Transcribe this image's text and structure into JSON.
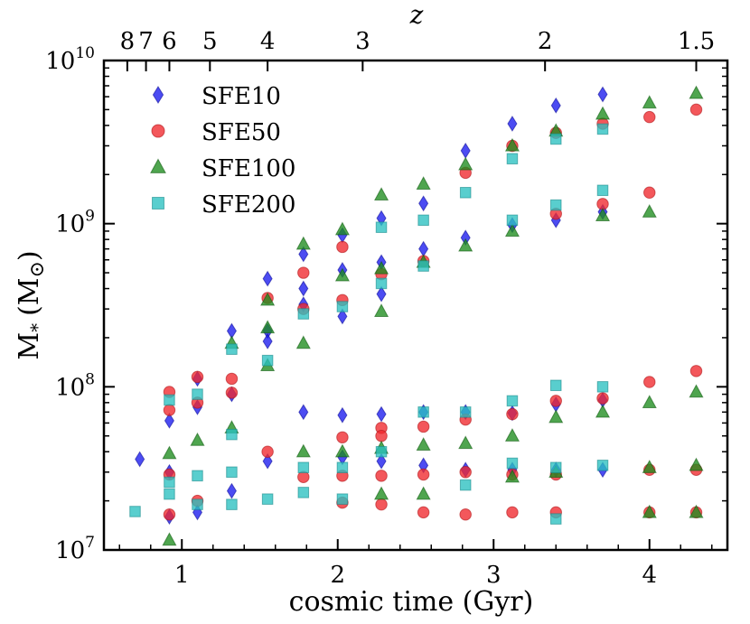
{
  "chart_data": {
    "type": "scatter",
    "title": "",
    "xlabel": "cosmic time (Gyr)",
    "ylabel": "M",
    "ylabel_sub": "*",
    "ylabel_unit": "(M",
    "ylabel_unit_close": ")",
    "top_axis_label": "z",
    "xlim": [
      0.5,
      4.5
    ],
    "ylim": [
      10000000.0,
      10000000000.0
    ],
    "yscale": "log",
    "legend_position": "top-left",
    "x_ticks": [
      {
        "value": 1,
        "label": "1"
      },
      {
        "value": 2,
        "label": "2"
      },
      {
        "value": 3,
        "label": "3"
      },
      {
        "value": 4,
        "label": "4"
      }
    ],
    "y_tick_base": "10",
    "y_ticks": [
      {
        "value": 10000000.0,
        "exp": "7"
      },
      {
        "value": 100000000.0,
        "exp": "8"
      },
      {
        "value": 1000000000.0,
        "exp": "9"
      },
      {
        "value": 10000000000.0,
        "exp": "10"
      }
    ],
    "top_ticks": [
      {
        "t": 0.65,
        "label": "8"
      },
      {
        "t": 0.77,
        "label": "7"
      },
      {
        "t": 0.92,
        "label": "6"
      },
      {
        "t": 1.18,
        "label": "5"
      },
      {
        "t": 1.55,
        "label": "4"
      },
      {
        "t": 2.16,
        "label": "3"
      },
      {
        "t": 3.33,
        "label": "2"
      },
      {
        "t": 4.3,
        "label": "1.5"
      }
    ],
    "series": [
      {
        "name": "SFE10",
        "marker": "diamond",
        "color": "#1a1aee",
        "edge": "#0d0d9a",
        "points": [
          [
            0.73,
            36000000.0
          ],
          [
            0.92,
            62000000.0
          ],
          [
            0.92,
            30000000.0
          ],
          [
            0.92,
            16000000.0
          ],
          [
            1.1,
            112000000.0
          ],
          [
            1.1,
            75000000.0
          ],
          [
            1.1,
            17000000.0
          ],
          [
            1.32,
            220000000.0
          ],
          [
            1.32,
            90000000.0
          ],
          [
            1.32,
            23000000.0
          ],
          [
            1.55,
            460000000.0
          ],
          [
            1.55,
            220000000.0
          ],
          [
            1.55,
            190000000.0
          ],
          [
            1.55,
            35000000.0
          ],
          [
            1.78,
            650000000.0
          ],
          [
            1.78,
            400000000.0
          ],
          [
            1.78,
            320000000.0
          ],
          [
            1.78,
            70000000.0
          ],
          [
            2.03,
            850000000.0
          ],
          [
            2.03,
            520000000.0
          ],
          [
            2.03,
            270000000.0
          ],
          [
            2.03,
            67000000.0
          ],
          [
            2.03,
            37000000.0
          ],
          [
            2.28,
            1080000000.0
          ],
          [
            2.28,
            580000000.0
          ],
          [
            2.28,
            370000000.0
          ],
          [
            2.28,
            68000000.0
          ],
          [
            2.28,
            35000000.0
          ],
          [
            2.55,
            1330000000.0
          ],
          [
            2.55,
            700000000.0
          ],
          [
            2.55,
            70000000.0
          ],
          [
            2.55,
            33000000.0
          ],
          [
            2.82,
            2800000000.0
          ],
          [
            2.82,
            820000000.0
          ],
          [
            2.82,
            70000000.0
          ],
          [
            2.82,
            31000000.0
          ],
          [
            3.12,
            4100000000.0
          ],
          [
            3.12,
            980000000.0
          ],
          [
            3.12,
            69000000.0
          ],
          [
            3.12,
            31000000.0
          ],
          [
            3.4,
            5300000000.0
          ],
          [
            3.4,
            1050000000.0
          ],
          [
            3.4,
            78000000.0
          ],
          [
            3.4,
            31000000.0
          ],
          [
            3.7,
            6200000000.0
          ],
          [
            3.7,
            1180000000.0
          ],
          [
            3.7,
            83000000.0
          ],
          [
            3.7,
            31000000.0
          ]
        ]
      },
      {
        "name": "SFE50",
        "marker": "circle",
        "color": "#f0282d",
        "edge": "#b01418",
        "points": [
          [
            0.92,
            93000000.0
          ],
          [
            0.92,
            72000000.0
          ],
          [
            0.92,
            29000000.0
          ],
          [
            0.92,
            16500000.0
          ],
          [
            1.1,
            115000000.0
          ],
          [
            1.1,
            80000000.0
          ],
          [
            1.1,
            20000000.0
          ],
          [
            1.32,
            112000000.0
          ],
          [
            1.32,
            92000000.0
          ],
          [
            1.55,
            350000000.0
          ],
          [
            1.55,
            40000000.0
          ],
          [
            1.78,
            500000000.0
          ],
          [
            1.78,
            300000000.0
          ],
          [
            1.78,
            28000000.0
          ],
          [
            2.03,
            720000000.0
          ],
          [
            2.03,
            340000000.0
          ],
          [
            2.03,
            49000000.0
          ],
          [
            2.03,
            28500000.0
          ],
          [
            2.03,
            19500000.0
          ],
          [
            2.28,
            490000000.0
          ],
          [
            2.28,
            56000000.0
          ],
          [
            2.28,
            50000000.0
          ],
          [
            2.28,
            28500000.0
          ],
          [
            2.28,
            19000000.0
          ],
          [
            2.55,
            590000000.0
          ],
          [
            2.55,
            57000000.0
          ],
          [
            2.55,
            29000000.0
          ],
          [
            2.55,
            17000000.0
          ],
          [
            2.82,
            2050000000.0
          ],
          [
            2.82,
            63000000.0
          ],
          [
            2.82,
            30000000.0
          ],
          [
            2.82,
            16500000.0
          ],
          [
            3.12,
            3000000000.0
          ],
          [
            3.12,
            68000000.0
          ],
          [
            3.12,
            29000000.0
          ],
          [
            3.12,
            17000000.0
          ],
          [
            3.4,
            3600000000.0
          ],
          [
            3.4,
            1150000000.0
          ],
          [
            3.4,
            82000000.0
          ],
          [
            3.4,
            29000000.0
          ],
          [
            3.4,
            17000000.0
          ],
          [
            3.7,
            4100000000.0
          ],
          [
            3.7,
            1320000000.0
          ],
          [
            3.7,
            85000000.0
          ],
          [
            4.0,
            4500000000.0
          ],
          [
            4.0,
            1550000000.0
          ],
          [
            4.0,
            107000000.0
          ],
          [
            4.0,
            31000000.0
          ],
          [
            4.0,
            17000000.0
          ],
          [
            4.3,
            5000000000.0
          ],
          [
            4.3,
            125000000.0
          ],
          [
            4.3,
            31000000.0
          ],
          [
            4.3,
            17000000.0
          ]
        ]
      },
      {
        "name": "SFE100",
        "marker": "triangle",
        "color": "#1e8c1e",
        "edge": "#0f5c0f",
        "points": [
          [
            0.92,
            39000000.0
          ],
          [
            0.92,
            11500000.0
          ],
          [
            1.1,
            47000000.0
          ],
          [
            1.32,
            185000000.0
          ],
          [
            1.32,
            56000000.0
          ],
          [
            1.55,
            340000000.0
          ],
          [
            1.55,
            230000000.0
          ],
          [
            1.55,
            135000000.0
          ],
          [
            1.78,
            750000000.0
          ],
          [
            1.78,
            185000000.0
          ],
          [
            1.78,
            40000000.0
          ],
          [
            2.03,
            920000000.0
          ],
          [
            2.03,
            480000000.0
          ],
          [
            2.03,
            40000000.0
          ],
          [
            2.28,
            1500000000.0
          ],
          [
            2.28,
            530000000.0
          ],
          [
            2.28,
            290000000.0
          ],
          [
            2.28,
            42000000.0
          ],
          [
            2.28,
            22000000.0
          ],
          [
            2.55,
            1750000000.0
          ],
          [
            2.55,
            580000000.0
          ],
          [
            2.55,
            44000000.0
          ],
          [
            2.55,
            22000000.0
          ],
          [
            2.82,
            2300000000.0
          ],
          [
            2.82,
            730000000.0
          ],
          [
            2.82,
            45000000.0
          ],
          [
            3.12,
            3000000000.0
          ],
          [
            3.12,
            900000000.0
          ],
          [
            3.12,
            50000000.0
          ],
          [
            3.12,
            28000000.0
          ],
          [
            3.4,
            3700000000.0
          ],
          [
            3.4,
            65000000.0
          ],
          [
            3.4,
            30000000.0
          ],
          [
            3.7,
            4700000000.0
          ],
          [
            3.7,
            1120000000.0
          ],
          [
            3.7,
            70000000.0
          ],
          [
            4.0,
            5500000000.0
          ],
          [
            4.0,
            1180000000.0
          ],
          [
            4.0,
            80000000.0
          ],
          [
            4.0,
            32000000.0
          ],
          [
            4.0,
            17000000.0
          ],
          [
            4.3,
            6300000000.0
          ],
          [
            4.3,
            93000000.0
          ],
          [
            4.3,
            33000000.0
          ],
          [
            4.3,
            17000000.0
          ]
        ]
      },
      {
        "name": "SFE200",
        "marker": "square",
        "color": "#2ac0c0",
        "edge": "#178a8a",
        "points": [
          [
            0.7,
            17200000.0
          ],
          [
            0.92,
            83000000.0
          ],
          [
            0.92,
            26000000.0
          ],
          [
            0.92,
            22000000.0
          ],
          [
            1.1,
            90000000.0
          ],
          [
            1.1,
            28500000.0
          ],
          [
            1.1,
            19000000.0
          ],
          [
            1.32,
            170000000.0
          ],
          [
            1.32,
            51000000.0
          ],
          [
            1.32,
            30000000.0
          ],
          [
            1.32,
            19000000.0
          ],
          [
            1.55,
            145000000.0
          ],
          [
            1.55,
            20500000.0
          ],
          [
            1.78,
            280000000.0
          ],
          [
            1.78,
            32000000.0
          ],
          [
            1.78,
            22500000.0
          ],
          [
            2.03,
            310000000.0
          ],
          [
            2.03,
            32000000.0
          ],
          [
            2.03,
            20500000.0
          ],
          [
            2.28,
            950000000.0
          ],
          [
            2.28,
            430000000.0
          ],
          [
            2.28,
            40000000.0
          ],
          [
            2.55,
            1050000000.0
          ],
          [
            2.55,
            550000000.0
          ],
          [
            2.55,
            70000000.0
          ],
          [
            2.82,
            1550000000.0
          ],
          [
            2.82,
            70000000.0
          ],
          [
            2.82,
            25000000.0
          ],
          [
            3.12,
            2500000000.0
          ],
          [
            3.12,
            1050000000.0
          ],
          [
            3.12,
            82000000.0
          ],
          [
            3.12,
            34000000.0
          ],
          [
            3.4,
            3300000000.0
          ],
          [
            3.4,
            1300000000.0
          ],
          [
            3.4,
            102000000.0
          ],
          [
            3.4,
            32000000.0
          ],
          [
            3.4,
            15500000.0
          ],
          [
            3.7,
            3800000000.0
          ],
          [
            3.7,
            1600000000.0
          ],
          [
            3.7,
            100000000.0
          ],
          [
            3.7,
            33000000.0
          ]
        ]
      }
    ]
  }
}
